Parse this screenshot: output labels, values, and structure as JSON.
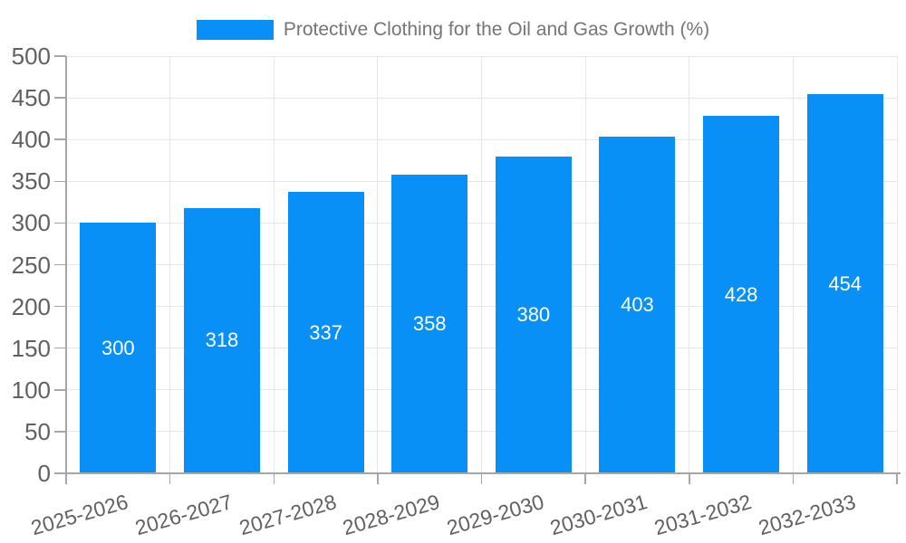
{
  "legend": {
    "label": "Protective Clothing for the Oil and Gas Growth (%)"
  },
  "chart_data": {
    "type": "bar",
    "title": "Protective Clothing for the Oil and Gas Growth (%)",
    "series_name": "Protective Clothing for the Oil and Gas Growth (%)",
    "categories": [
      "2025-2026",
      "2026-2027",
      "2027-2028",
      "2028-2029",
      "2029-2030",
      "2030-2031",
      "2031-2032",
      "2032-2033"
    ],
    "values": [
      300,
      318,
      337,
      358,
      380,
      403,
      428,
      454
    ],
    "value_labels": [
      "300",
      "318",
      "337",
      "358",
      "380",
      "403",
      "428",
      "454"
    ],
    "xlabel": "",
    "ylabel": "",
    "ylim": [
      0,
      500
    ],
    "yticks": [
      0,
      50,
      100,
      150,
      200,
      250,
      300,
      350,
      400,
      450,
      500
    ],
    "grid": true,
    "legend_position": "top",
    "bar_color": "#0990f6",
    "value_label_color": "#ffffff",
    "axis_text_color": "#616161",
    "legend_text_color": "#757575",
    "grid_color": "#e6e6e6",
    "axis_line_color": "#a6a6a6"
  }
}
